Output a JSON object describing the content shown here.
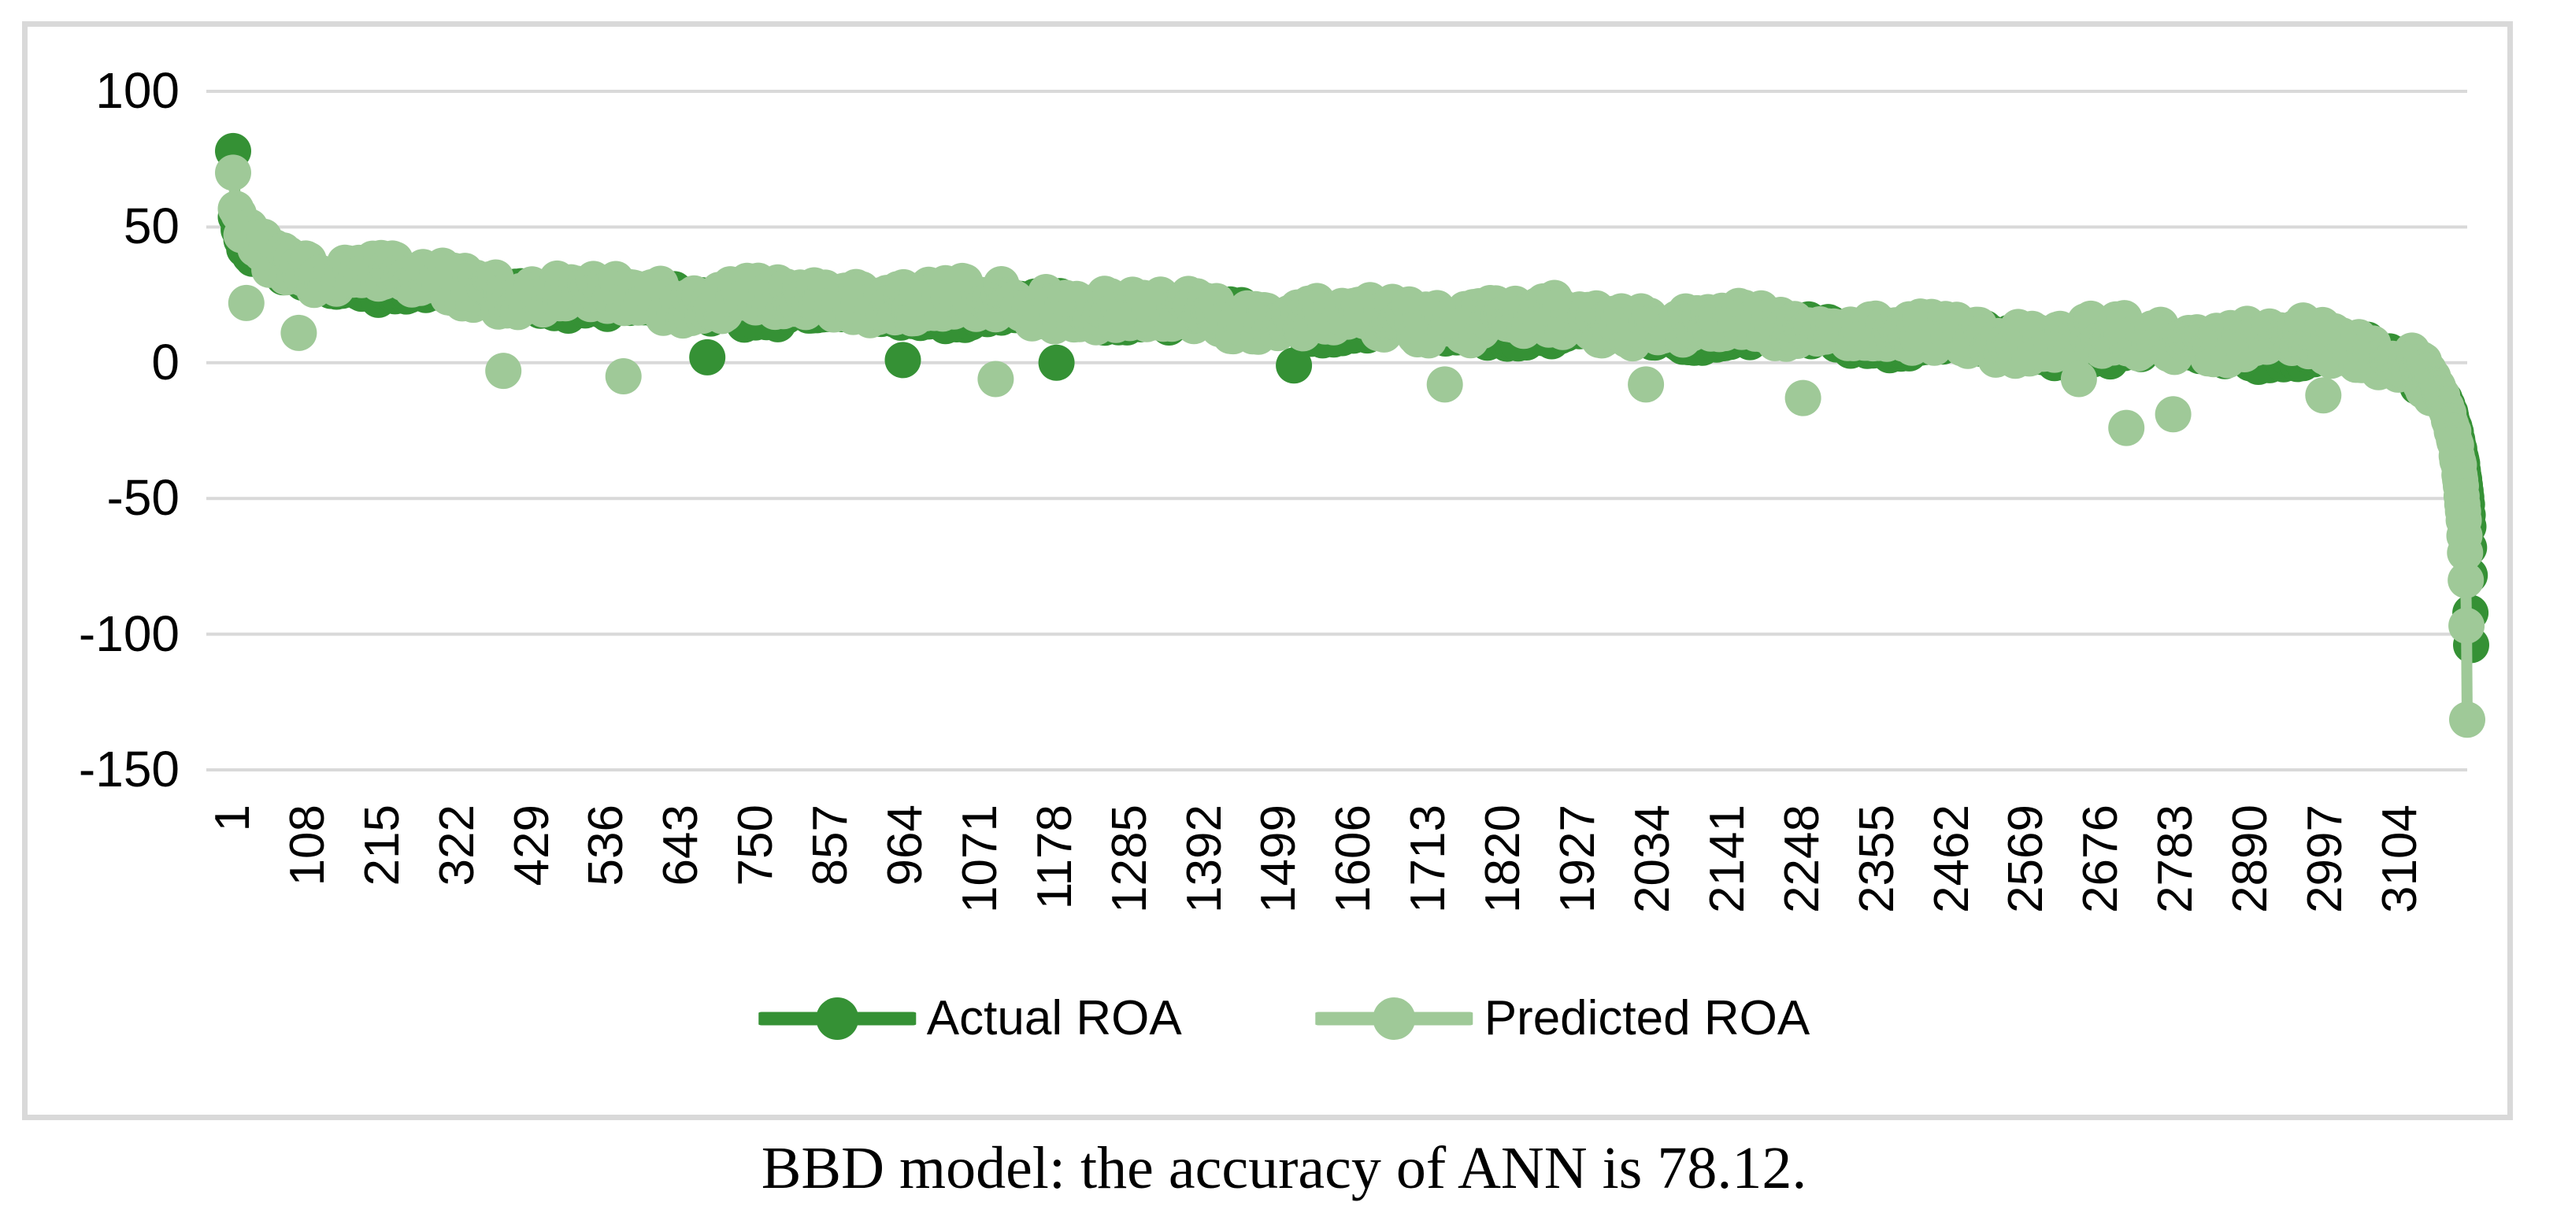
{
  "figure": {
    "caption": "BBD model: the accuracy of ANN is 78.12."
  },
  "chart_data": {
    "type": "line",
    "title": "",
    "description": "Actual vs ANN-predicted ROA for ~3200 firms, sorted in descending order of ROA",
    "x_axis": {
      "label": "",
      "tick_labels": [
        1,
        108,
        215,
        322,
        429,
        536,
        643,
        750,
        857,
        964,
        1071,
        1178,
        1285,
        1392,
        1499,
        1606,
        1713,
        1820,
        1927,
        2034,
        2141,
        2248,
        2355,
        2462,
        2569,
        2676,
        2783,
        2890,
        2997,
        3104
      ],
      "n_points": 3200
    },
    "y_axis": {
      "label": "",
      "tick_labels": [
        100,
        50,
        0,
        -50,
        -100,
        -150
      ],
      "range": [
        -150,
        100
      ]
    },
    "grid": "horizontal",
    "gridline_color": "#D9D9D9",
    "frame_color": "#D9D9D9",
    "text_color": "#000000",
    "legend_position": "bottom",
    "series": [
      {
        "name": "Actual ROA",
        "color": "#359135",
        "scatter_amp": 4.5,
        "profile": [
          [
            1,
            78
          ],
          [
            2,
            60
          ],
          [
            4,
            54
          ],
          [
            8,
            49
          ],
          [
            15,
            44
          ],
          [
            25,
            40.5
          ],
          [
            40,
            37.5
          ],
          [
            60,
            34.5
          ],
          [
            90,
            32
          ],
          [
            130,
            30
          ],
          [
            200,
            28
          ],
          [
            300,
            26
          ],
          [
            450,
            24
          ],
          [
            600,
            22.5
          ],
          [
            800,
            20.5
          ],
          [
            1000,
            19
          ],
          [
            1200,
            17.5
          ],
          [
            1400,
            16
          ],
          [
            1600,
            14.5
          ],
          [
            1800,
            13
          ],
          [
            2000,
            11.5
          ],
          [
            2200,
            10
          ],
          [
            2400,
            8.5
          ],
          [
            2600,
            7
          ],
          [
            2750,
            6
          ],
          [
            2900,
            4.5
          ],
          [
            3000,
            3
          ],
          [
            3050,
            1.5
          ],
          [
            3090,
            -0.5
          ],
          [
            3115,
            -2.5
          ],
          [
            3135,
            -5.5
          ],
          [
            3150,
            -9
          ],
          [
            3162,
            -14
          ],
          [
            3172,
            -20
          ],
          [
            3180,
            -28
          ],
          [
            3186,
            -36
          ],
          [
            3191,
            -45
          ],
          [
            3194,
            -52
          ],
          [
            3196,
            -60
          ],
          [
            3197,
            -68
          ],
          [
            3198,
            -78
          ],
          [
            3199,
            -92
          ],
          [
            3200,
            -104
          ]
        ],
        "outliers": [
          [
            680,
            2
          ],
          [
            960,
            1
          ],
          [
            1180,
            0
          ],
          [
            1520,
            -1
          ]
        ]
      },
      {
        "name": "Predicted ROA",
        "color": "#9FC998",
        "scatter_amp": 6.5,
        "profile": [
          [
            1,
            70
          ],
          [
            2,
            63
          ],
          [
            4,
            57
          ],
          [
            8,
            52
          ],
          [
            15,
            47
          ],
          [
            25,
            43
          ],
          [
            40,
            40
          ],
          [
            60,
            37
          ],
          [
            90,
            34.5
          ],
          [
            130,
            32.5
          ],
          [
            200,
            30.5
          ],
          [
            300,
            28.5
          ],
          [
            450,
            26.5
          ],
          [
            600,
            25
          ],
          [
            800,
            23
          ],
          [
            1000,
            21.5
          ],
          [
            1200,
            20
          ],
          [
            1400,
            18.5
          ],
          [
            1600,
            17
          ],
          [
            1800,
            15.5
          ],
          [
            2000,
            14
          ],
          [
            2200,
            12.5
          ],
          [
            2400,
            11
          ],
          [
            2600,
            9.5
          ],
          [
            2750,
            8.5
          ],
          [
            2900,
            7
          ],
          [
            3000,
            5.5
          ],
          [
            3050,
            4
          ],
          [
            3090,
            2
          ],
          [
            3115,
            0
          ],
          [
            3135,
            -3
          ],
          [
            3150,
            -7
          ],
          [
            3162,
            -12
          ],
          [
            3172,
            -18
          ],
          [
            3180,
            -26
          ],
          [
            3186,
            -35
          ],
          [
            3191,
            -46
          ],
          [
            3195,
            -58
          ],
          [
            3197,
            -70
          ],
          [
            3198,
            -80
          ],
          [
            3199,
            -97
          ],
          [
            3200,
            -131.5
          ]
        ],
        "outliers": [
          [
            20,
            22
          ],
          [
            95,
            11
          ],
          [
            388,
            -3
          ],
          [
            560,
            -5
          ],
          [
            1093,
            -6
          ],
          [
            1736,
            -8
          ],
          [
            2024,
            -8
          ],
          [
            2249,
            -13
          ],
          [
            2644,
            -6
          ],
          [
            2712,
            -24
          ],
          [
            2779,
            -19
          ],
          [
            2994,
            -12
          ]
        ]
      }
    ]
  }
}
